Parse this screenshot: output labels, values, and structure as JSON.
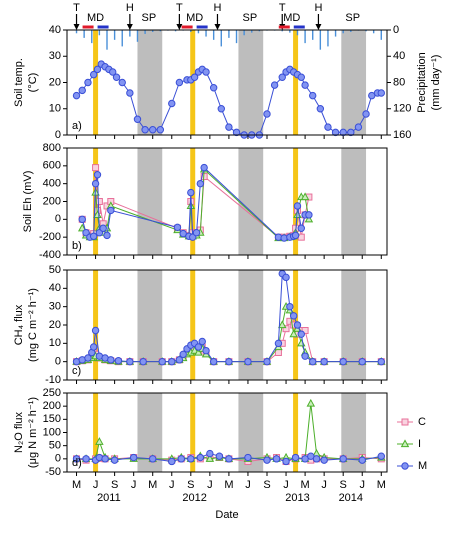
{
  "chart_data": [
    {
      "type": "line",
      "panel_label": "a)",
      "ylabel": [
        "Soil temp.",
        "(°C)"
      ],
      "y2label": [
        "Precipitation",
        "(mm day⁻¹)"
      ],
      "ylim": [
        0,
        40
      ],
      "yticks": [
        0,
        10,
        20,
        30,
        40
      ],
      "y2lim": [
        0,
        160
      ],
      "y2ticks": [
        0,
        40,
        80,
        120,
        160
      ],
      "y2_inverted": true,
      "shaded_spans": [
        [
          3.2,
          4.5
        ],
        [
          8.5,
          9.8
        ],
        [
          13.9,
          15.2
        ]
      ],
      "shade_color": "#bdbdbd",
      "highlight_x": [
        1.0,
        6.1,
        11.5
      ],
      "highlight_color": "#f5c518",
      "annotations": [
        {
          "text": "T",
          "x": 0
        },
        {
          "text": "MD",
          "x": 1.0
        },
        {
          "text": "H",
          "x": 2.8
        },
        {
          "text": "SP",
          "x": 3.8
        },
        {
          "text": "T",
          "x": 5.4
        },
        {
          "text": "MD",
          "x": 6.2
        },
        {
          "text": "H",
          "x": 7.4
        },
        {
          "text": "SP",
          "x": 9.1
        },
        {
          "text": "T",
          "x": 10.8
        },
        {
          "text": "MD",
          "x": 11.3
        },
        {
          "text": "H",
          "x": 12.7
        },
        {
          "text": "SP",
          "x": 14.5
        }
      ],
      "x": [
        0,
        0.3,
        0.6,
        0.9,
        1.1,
        1.3,
        1.5,
        1.7,
        1.9,
        2.1,
        2.4,
        2.8,
        3.2,
        3.6,
        4.0,
        4.4,
        5.0,
        5.4,
        5.8,
        6.0,
        6.2,
        6.4,
        6.6,
        6.8,
        7.2,
        7.6,
        8.0,
        8.4,
        8.8,
        9.2,
        9.6,
        10.0,
        10.4,
        10.8,
        11.0,
        11.2,
        11.4,
        11.6,
        11.8,
        12.0,
        12.4,
        12.8,
        13.2,
        13.6,
        14.0,
        14.4,
        14.8,
        15.2,
        15.5,
        15.8,
        16.0
      ],
      "series": [
        {
          "color": "#3a4fd6",
          "marker": "circle",
          "marker_fill": "#8294f2",
          "values": [
            15,
            17,
            20,
            23,
            25,
            27,
            26,
            25,
            24,
            22,
            20,
            16,
            6,
            2,
            2,
            2,
            12,
            20,
            21,
            21,
            22,
            24,
            25,
            24,
            18,
            10,
            3,
            1,
            0,
            0,
            0,
            8,
            19,
            22,
            24,
            25,
            24,
            23,
            22,
            19,
            15,
            10,
            3,
            1,
            1,
            1,
            3,
            8,
            15,
            16,
            16
          ]
        },
        {
          "type": "bar",
          "axis": "y2",
          "color": "#4a90d9",
          "x": [
            0,
            0.4,
            0.8,
            1.2,
            1.6,
            2,
            2.4,
            2.8,
            3.2,
            3.6,
            4,
            4.4,
            4.8,
            5.2,
            5.6,
            6,
            6.4,
            6.8,
            7.2,
            7.6,
            8,
            8.4,
            8.8,
            9.2,
            9.6,
            10,
            10.4,
            10.8,
            11.2,
            11.6,
            12,
            12.4,
            12.8,
            13.2,
            13.6,
            14,
            14.4,
            14.8,
            15.2,
            15.6,
            16
          ],
          "values": [
            5,
            12,
            20,
            8,
            30,
            15,
            25,
            10,
            18,
            6,
            3,
            2,
            1,
            2,
            1,
            3,
            5,
            10,
            15,
            25,
            12,
            20,
            8,
            4,
            2,
            1,
            1,
            2,
            4,
            8,
            20,
            15,
            30,
            25,
            10,
            5,
            3,
            1,
            2,
            5,
            15
          ]
        }
      ]
    },
    {
      "type": "line",
      "panel_label": "b)",
      "ylabel": [
        "Soil Eh  (mV)"
      ],
      "ylim": [
        -400,
        800
      ],
      "yticks": [
        -400,
        -200,
        0,
        200,
        400,
        600,
        800
      ],
      "x": [
        0.3,
        0.5,
        0.7,
        0.9,
        1.0,
        1.1,
        1.2,
        1.4,
        1.6,
        1.8,
        5.3,
        5.6,
        5.9,
        6.0,
        6.1,
        6.3,
        6.5,
        6.7,
        10.6,
        10.9,
        11.2,
        11.4,
        11.5,
        11.6,
        11.8,
        12.0,
        12.2
      ],
      "series": [
        {
          "name": "C",
          "color": "#e8709a",
          "marker": "square",
          "marker_fill": "#f9d3e0",
          "values": [
            0,
            -150,
            -180,
            -160,
            580,
            100,
            200,
            -50,
            150,
            200,
            -100,
            -150,
            -180,
            200,
            -150,
            -150,
            -120,
            480,
            -200,
            -200,
            -190,
            -180,
            -100,
            100,
            -200,
            50,
            250
          ]
        },
        {
          "name": "I",
          "color": "#4caf2a",
          "marker": "triangle",
          "marker_fill": "#c9eebb",
          "values": [
            -100,
            -180,
            -200,
            -200,
            300,
            50,
            -100,
            -150,
            -100,
            150,
            -120,
            -170,
            -190,
            150,
            -190,
            -180,
            -150,
            560,
            -210,
            -210,
            -200,
            -190,
            -150,
            50,
            250,
            250,
            0
          ]
        },
        {
          "name": "M",
          "color": "#3a4fd6",
          "marker": "circle",
          "marker_fill": "#8294f2",
          "values": [
            0,
            -150,
            -200,
            -190,
            400,
            500,
            -150,
            -100,
            -180,
            100,
            -90,
            -160,
            -190,
            300,
            -200,
            -150,
            400,
            580,
            -200,
            -210,
            -200,
            -190,
            -180,
            150,
            -100,
            50,
            50
          ]
        }
      ]
    },
    {
      "type": "line",
      "panel_label": "c)",
      "ylabel": [
        "CH₄ flux",
        "(mg C m⁻² h⁻¹)"
      ],
      "ylim": [
        -10,
        50
      ],
      "yticks": [
        -10,
        0,
        10,
        20,
        30,
        40,
        50
      ],
      "x": [
        0.0,
        0.3,
        0.6,
        0.8,
        0.9,
        1.0,
        1.2,
        1.5,
        1.8,
        2.2,
        2.8,
        3.5,
        4.5,
        5.0,
        5.4,
        5.6,
        5.8,
        6.0,
        6.2,
        6.4,
        6.6,
        6.8,
        7.2,
        8,
        9,
        10,
        10.6,
        10.8,
        11.0,
        11.2,
        11.4,
        11.6,
        11.8,
        12.0,
        12.4,
        13,
        14,
        15,
        16
      ],
      "series": [
        {
          "name": "C",
          "color": "#e8709a",
          "marker": "square",
          "marker_fill": "#f9d3e0",
          "values": [
            0,
            0.5,
            1,
            3,
            5,
            4,
            2,
            1,
            0.5,
            0,
            0,
            0,
            0,
            0,
            1,
            3,
            5,
            6,
            7,
            6,
            8,
            5,
            0,
            0,
            0,
            0,
            5,
            10,
            18,
            22,
            20,
            15,
            17,
            17,
            0,
            0,
            0,
            0,
            0
          ]
        },
        {
          "name": "I",
          "color": "#4caf2a",
          "marker": "triangle",
          "marker_fill": "#c9eebb",
          "values": [
            0,
            0.5,
            1,
            2,
            4,
            3,
            2,
            1,
            0.5,
            0,
            0,
            0,
            0,
            0,
            1,
            2,
            4,
            5,
            6,
            5,
            7,
            4,
            0,
            0,
            0,
            0,
            8,
            20,
            30,
            28,
            15,
            18,
            10,
            5,
            0,
            0,
            0,
            0,
            0
          ]
        },
        {
          "name": "M",
          "color": "#3a4fd6",
          "marker": "circle",
          "marker_fill": "#8294f2",
          "values": [
            0,
            1,
            2,
            5,
            8,
            17,
            3,
            2,
            1,
            0.5,
            0,
            0,
            0,
            0,
            1,
            4,
            7,
            9,
            10,
            8,
            11,
            6,
            0,
            0,
            0,
            0,
            10,
            48,
            46,
            30,
            25,
            20,
            15,
            3,
            0,
            0,
            0,
            0,
            0
          ]
        }
      ]
    },
    {
      "type": "line",
      "panel_label": "d)",
      "ylabel": [
        "N₂O flux",
        "(μg N m⁻² h⁻¹)"
      ],
      "xlabel": "Date",
      "legend": "right",
      "ylim": [
        -50,
        250
      ],
      "yticks": [
        -50,
        0,
        50,
        100,
        150,
        200,
        250
      ],
      "xlim": [
        -0.5,
        16.3
      ],
      "xticks": [
        {
          "value": 0,
          "label": "M"
        },
        {
          "value": 1,
          "label": "J"
        },
        {
          "value": 2,
          "label": "S"
        },
        {
          "value": 3,
          "label": "J"
        },
        {
          "value": 4,
          "label": "M"
        },
        {
          "value": 5,
          "label": "J"
        },
        {
          "value": 6,
          "label": "S"
        },
        {
          "value": 7,
          "label": "J"
        },
        {
          "value": 8,
          "label": "M"
        },
        {
          "value": 9,
          "label": "J"
        },
        {
          "value": 10,
          "label": "S"
        },
        {
          "value": 11,
          "label": "J"
        },
        {
          "value": 12,
          "label": "M"
        },
        {
          "value": 13,
          "label": "J"
        },
        {
          "value": 14,
          "label": "S"
        },
        {
          "value": 15,
          "label": "J"
        },
        {
          "value": 16,
          "label": "M"
        }
      ],
      "year_ticks": [
        {
          "value": 1.7,
          "label": "2011"
        },
        {
          "value": 6.2,
          "label": "2012"
        },
        {
          "value": 11.6,
          "label": "2013"
        },
        {
          "value": 14.4,
          "label": "2014"
        }
      ],
      "x": [
        0,
        0.5,
        1.0,
        1.2,
        1.5,
        2,
        3,
        4,
        5,
        5.5,
        6.0,
        6.5,
        7,
        7.5,
        8,
        9,
        10,
        10.5,
        11.0,
        11.5,
        12,
        12.3,
        12.6,
        13,
        14,
        15,
        16
      ],
      "series": [
        {
          "name": "C",
          "color": "#e8709a",
          "marker": "square",
          "marker_fill": "#f9d3e0",
          "values": [
            0,
            -5,
            0,
            2,
            0,
            0,
            5,
            0,
            -5,
            0,
            5,
            0,
            5,
            5,
            0,
            -10,
            0,
            5,
            -10,
            0,
            5,
            -5,
            0,
            0,
            0,
            5,
            0
          ]
        },
        {
          "name": "I",
          "color": "#4caf2a",
          "marker": "triangle",
          "marker_fill": "#c9eebb",
          "values": [
            0,
            0,
            0,
            65,
            5,
            0,
            0,
            0,
            0,
            5,
            0,
            10,
            0,
            5,
            0,
            0,
            5,
            0,
            5,
            0,
            0,
            210,
            20,
            5,
            0,
            0,
            5
          ]
        },
        {
          "name": "M",
          "color": "#3a4fd6",
          "marker": "circle",
          "marker_fill": "#8294f2",
          "values": [
            0,
            0,
            -5,
            5,
            0,
            -5,
            5,
            0,
            -10,
            0,
            0,
            5,
            20,
            10,
            0,
            5,
            -5,
            0,
            -10,
            5,
            0,
            10,
            0,
            -5,
            0,
            -5,
            10
          ]
        }
      ]
    }
  ]
}
